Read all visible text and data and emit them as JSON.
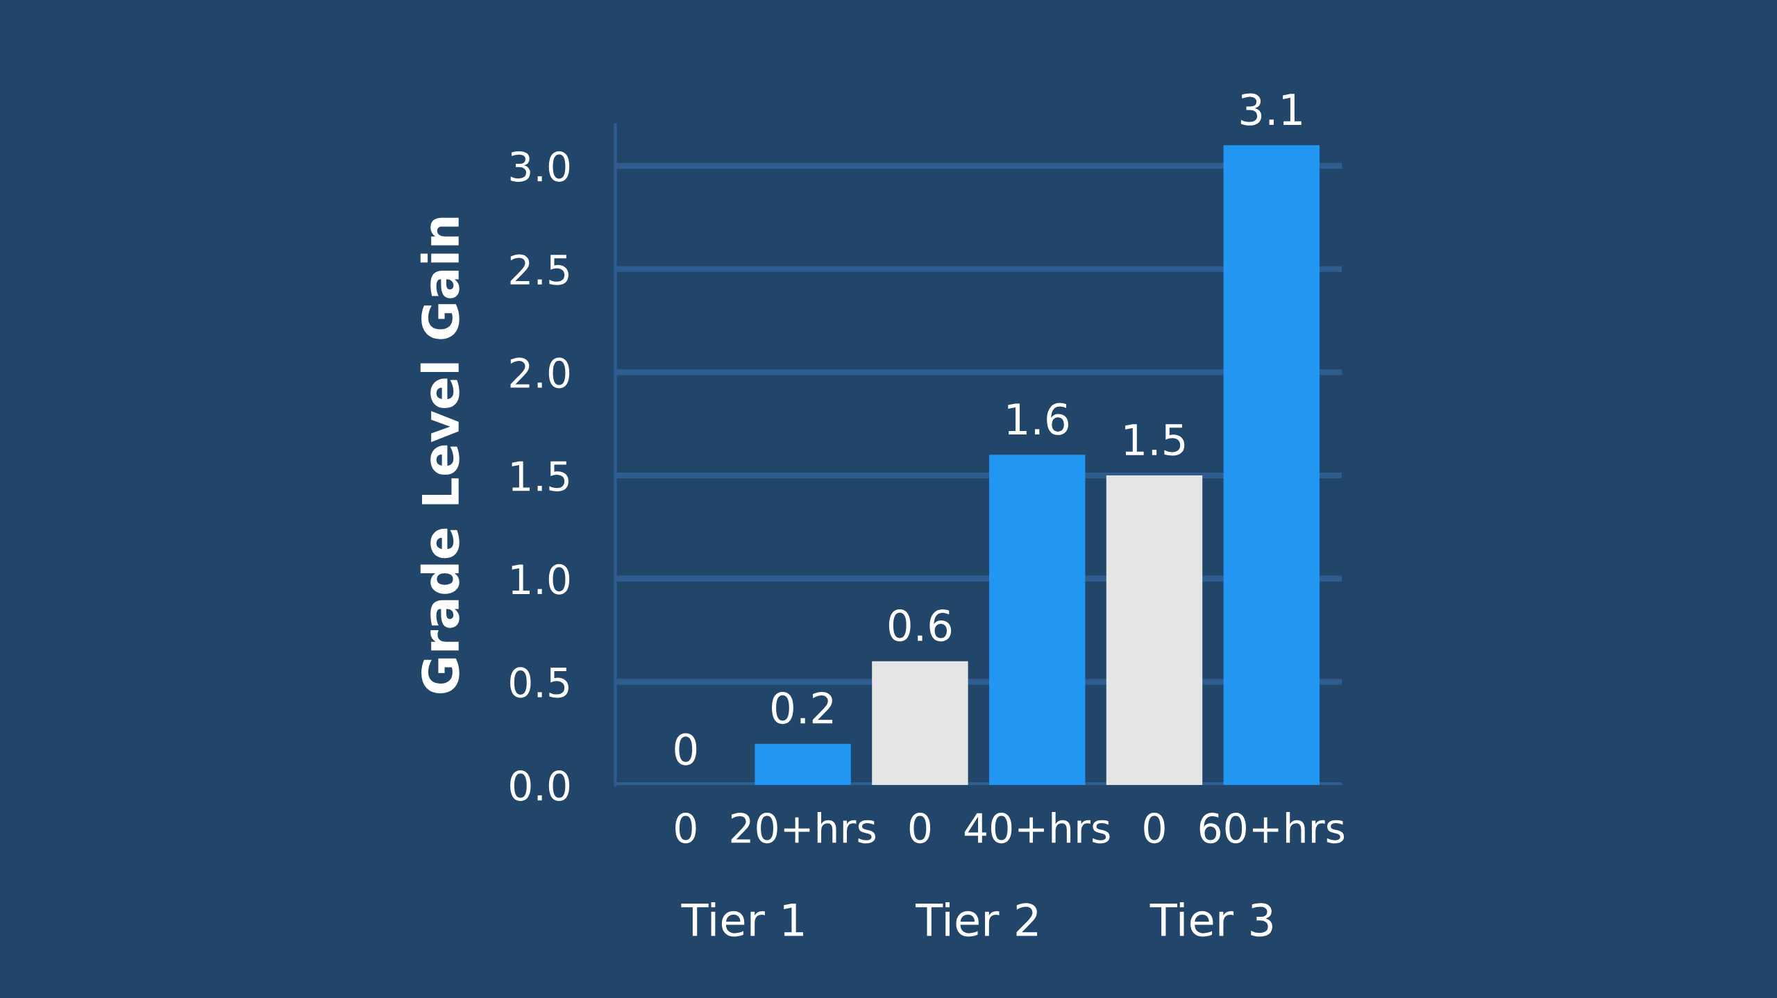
{
  "chart_data": {
    "type": "bar",
    "ylabel": "Grade Level Gain",
    "categories": [
      "0",
      "20+hrs",
      "0",
      "40+hrs",
      "0",
      "60+hrs"
    ],
    "values": [
      0,
      0.2,
      0.6,
      1.6,
      1.5,
      3.1
    ],
    "colors": [
      "#e5e5e5",
      "#2196f3",
      "#e5e5e5",
      "#2196f3",
      "#e5e5e5",
      "#2196f3"
    ],
    "data_labels": true,
    "ylim": [
      0,
      3.2
    ],
    "yticks": [
      {
        "value": 0,
        "label": "0.0"
      },
      {
        "value": 0.5,
        "label": "0.5"
      },
      {
        "value": 1,
        "label": "1.0"
      },
      {
        "value": 1.5,
        "label": "1.5"
      },
      {
        "value": 2,
        "label": "2.0"
      },
      {
        "value": 2.5,
        "label": "2.5"
      },
      {
        "value": 3,
        "label": "3.0"
      }
    ],
    "grid": "y",
    "annotations": [
      "Tier 1",
      "Tier 2",
      "Tier 3"
    ]
  }
}
